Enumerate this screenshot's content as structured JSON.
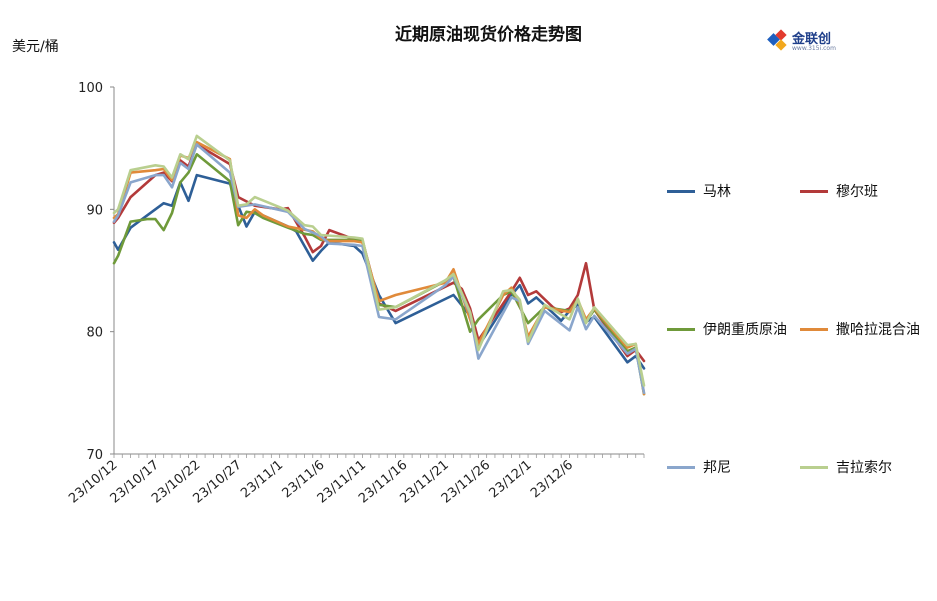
{
  "title": "近期原油现货价格走势图",
  "y_unit": "美元/桶",
  "logo": {
    "text": "金联创",
    "subtext": "www.315i.com"
  },
  "chart_data": {
    "type": "line",
    "ylim": [
      70,
      100
    ],
    "yticks": [
      70,
      80,
      90,
      100
    ],
    "x_tick_labels": [
      "23/10/12",
      "23/10/17",
      "23/10/22",
      "23/10/27",
      "23/11/1",
      "23/11/6",
      "23/11/11",
      "23/11/16",
      "23/11/21",
      "23/11/26",
      "23/12/1",
      "23/12/6"
    ],
    "x_start": "23/10/12",
    "x_end": "23/12/7",
    "grid": false,
    "legend_position": "right",
    "series": [
      {
        "name": "马林",
        "color": "#2e5f97",
        "points": [
          [
            0,
            87.3
          ],
          [
            0.5,
            86.7
          ],
          [
            2,
            88.5
          ],
          [
            4,
            89.5
          ],
          [
            6,
            90.5
          ],
          [
            7,
            90.3
          ],
          [
            8,
            92.2
          ],
          [
            9,
            90.7
          ],
          [
            10,
            92.8
          ],
          [
            14,
            92.1
          ],
          [
            15,
            90.3
          ],
          [
            16,
            88.6
          ],
          [
            17,
            89.8
          ],
          [
            21,
            88.6
          ],
          [
            22,
            88.2
          ],
          [
            24,
            85.8
          ],
          [
            25,
            86.6
          ],
          [
            26,
            87.3
          ],
          [
            29,
            87.0
          ],
          [
            30,
            86.4
          ],
          [
            32,
            83.0
          ],
          [
            34,
            80.7
          ],
          [
            41,
            83.0
          ],
          [
            43,
            81.3
          ],
          [
            44,
            78.8
          ],
          [
            48,
            83.0
          ],
          [
            49,
            83.8
          ],
          [
            50,
            82.3
          ],
          [
            51,
            82.8
          ],
          [
            54,
            80.9
          ],
          [
            55,
            81.7
          ],
          [
            56,
            82.2
          ],
          [
            57,
            80.8
          ],
          [
            58,
            81.2
          ],
          [
            62,
            77.5
          ],
          [
            63,
            78.0
          ],
          [
            64,
            77.0
          ]
        ]
      },
      {
        "name": "穆尔班",
        "color": "#b33a3a",
        "points": [
          [
            0,
            88.9
          ],
          [
            0.5,
            89.3
          ],
          [
            2,
            91.0
          ],
          [
            5,
            92.8
          ],
          [
            6,
            93.0
          ],
          [
            7,
            92.3
          ],
          [
            8,
            94.0
          ],
          [
            9,
            93.5
          ],
          [
            10,
            95.3
          ],
          [
            14,
            93.7
          ],
          [
            15,
            91.0
          ],
          [
            17,
            90.3
          ],
          [
            20,
            90.0
          ],
          [
            21,
            90.1
          ],
          [
            23,
            87.8
          ],
          [
            24,
            86.5
          ],
          [
            25,
            87.0
          ],
          [
            26,
            88.3
          ],
          [
            28,
            87.8
          ],
          [
            29,
            87.5
          ],
          [
            30,
            87.5
          ],
          [
            32,
            82.3
          ],
          [
            34,
            81.7
          ],
          [
            41,
            84.0
          ],
          [
            42,
            83.5
          ],
          [
            43,
            81.9
          ],
          [
            44,
            79.3
          ],
          [
            48,
            83.3
          ],
          [
            49,
            84.4
          ],
          [
            50,
            83.0
          ],
          [
            51,
            83.3
          ],
          [
            53,
            82.0
          ],
          [
            54,
            81.6
          ],
          [
            55,
            81.9
          ],
          [
            56,
            83.0
          ],
          [
            57,
            85.6
          ],
          [
            58,
            81.8
          ],
          [
            62,
            78.0
          ],
          [
            63,
            78.5
          ],
          [
            64,
            77.6
          ]
        ]
      },
      {
        "name": "伊朗重质原油",
        "color": "#6f9a3a",
        "points": [
          [
            0,
            85.6
          ],
          [
            0.5,
            86.2
          ],
          [
            2,
            89.0
          ],
          [
            4,
            89.2
          ],
          [
            5,
            89.2
          ],
          [
            6,
            88.3
          ],
          [
            7,
            89.7
          ],
          [
            8,
            92.2
          ],
          [
            9,
            93.0
          ],
          [
            10,
            94.5
          ],
          [
            14,
            92.3
          ],
          [
            15,
            88.7
          ],
          [
            16,
            89.8
          ],
          [
            17,
            89.7
          ],
          [
            18,
            89.3
          ],
          [
            21,
            88.5
          ],
          [
            23,
            88.0
          ],
          [
            24,
            87.9
          ],
          [
            25,
            87.5
          ],
          [
            29,
            87.5
          ],
          [
            30,
            87.4
          ],
          [
            32,
            82.2
          ],
          [
            34,
            82.0
          ],
          [
            41,
            84.5
          ],
          [
            43,
            80.0
          ],
          [
            44,
            81.0
          ],
          [
            47,
            83.0
          ],
          [
            48,
            83.3
          ],
          [
            49,
            82.0
          ],
          [
            50,
            80.7
          ],
          [
            52,
            82.0
          ],
          [
            55,
            81.7
          ],
          [
            56,
            82.6
          ],
          [
            57,
            80.8
          ],
          [
            58,
            81.8
          ],
          [
            62,
            78.4
          ],
          [
            63,
            78.7
          ],
          [
            64,
            74.9
          ]
        ]
      },
      {
        "name": "撒哈拉混合油",
        "color": "#e08a3a",
        "points": [
          [
            0,
            89.3
          ],
          [
            0.5,
            89.6
          ],
          [
            2,
            93.0
          ],
          [
            5,
            93.2
          ],
          [
            6,
            93.3
          ],
          [
            7,
            92.4
          ],
          [
            8,
            94.4
          ],
          [
            9,
            94.2
          ],
          [
            10,
            95.5
          ],
          [
            14,
            94.1
          ],
          [
            15,
            89.5
          ],
          [
            16,
            89.3
          ],
          [
            17,
            90.0
          ],
          [
            18,
            89.5
          ],
          [
            21,
            88.6
          ],
          [
            24,
            88.2
          ],
          [
            25,
            87.6
          ],
          [
            26,
            87.4
          ],
          [
            29,
            87.4
          ],
          [
            30,
            87.3
          ],
          [
            32,
            82.5
          ],
          [
            34,
            83.0
          ],
          [
            40,
            84.0
          ],
          [
            41,
            85.1
          ],
          [
            43,
            81.0
          ],
          [
            44,
            79.0
          ],
          [
            47,
            83.0
          ],
          [
            48,
            83.6
          ],
          [
            49,
            82.3
          ],
          [
            50,
            79.6
          ],
          [
            52,
            82.0
          ],
          [
            55,
            81.6
          ],
          [
            56,
            82.6
          ],
          [
            57,
            81.0
          ],
          [
            58,
            81.9
          ],
          [
            62,
            78.7
          ],
          [
            63,
            79.0
          ],
          [
            64,
            74.9
          ]
        ]
      },
      {
        "name": "邦尼",
        "color": "#8aa6cc",
        "points": [
          [
            0,
            89.0
          ],
          [
            0.5,
            89.5
          ],
          [
            2,
            92.2
          ],
          [
            5,
            92.8
          ],
          [
            6,
            92.8
          ],
          [
            7,
            91.8
          ],
          [
            8,
            93.8
          ],
          [
            9,
            93.3
          ],
          [
            10,
            95.3
          ],
          [
            14,
            93.0
          ],
          [
            15,
            90.2
          ],
          [
            17,
            90.4
          ],
          [
            21,
            89.8
          ],
          [
            23,
            88.4
          ],
          [
            25,
            87.8
          ],
          [
            26,
            87.2
          ],
          [
            29,
            87.1
          ],
          [
            30,
            87.0
          ],
          [
            32,
            81.2
          ],
          [
            34,
            81.0
          ],
          [
            40,
            83.8
          ],
          [
            41,
            84.5
          ],
          [
            43,
            81.5
          ],
          [
            44,
            77.8
          ],
          [
            48,
            82.8
          ],
          [
            49,
            82.5
          ],
          [
            50,
            79.0
          ],
          [
            52,
            81.7
          ],
          [
            55,
            80.1
          ],
          [
            56,
            82.0
          ],
          [
            57,
            80.2
          ],
          [
            58,
            81.3
          ],
          [
            62,
            78.2
          ],
          [
            63,
            78.6
          ],
          [
            64,
            75.0
          ]
        ]
      },
      {
        "name": "吉拉索尔",
        "color": "#b9cf8f",
        "points": [
          [
            0,
            89.7
          ],
          [
            0.5,
            90.0
          ],
          [
            2,
            93.2
          ],
          [
            5,
            93.6
          ],
          [
            6,
            93.5
          ],
          [
            7,
            92.6
          ],
          [
            8,
            94.5
          ],
          [
            9,
            94.1
          ],
          [
            10,
            96.0
          ],
          [
            14,
            94.0
          ],
          [
            15,
            90.3
          ],
          [
            16,
            90.4
          ],
          [
            17,
            91.0
          ],
          [
            21,
            89.9
          ],
          [
            23,
            88.7
          ],
          [
            24,
            88.6
          ],
          [
            25,
            87.9
          ],
          [
            29,
            87.7
          ],
          [
            30,
            87.6
          ],
          [
            32,
            81.8
          ],
          [
            34,
            82.0
          ],
          [
            40,
            84.2
          ],
          [
            41,
            84.7
          ],
          [
            43,
            81.6
          ],
          [
            44,
            78.5
          ],
          [
            47,
            83.3
          ],
          [
            48,
            83.4
          ],
          [
            49,
            82.6
          ],
          [
            50,
            79.2
          ],
          [
            52,
            82.2
          ],
          [
            55,
            81.0
          ],
          [
            56,
            82.7
          ],
          [
            57,
            80.7
          ],
          [
            58,
            82.0
          ],
          [
            62,
            78.9
          ],
          [
            63,
            79.0
          ],
          [
            64,
            75.6
          ]
        ]
      }
    ]
  }
}
